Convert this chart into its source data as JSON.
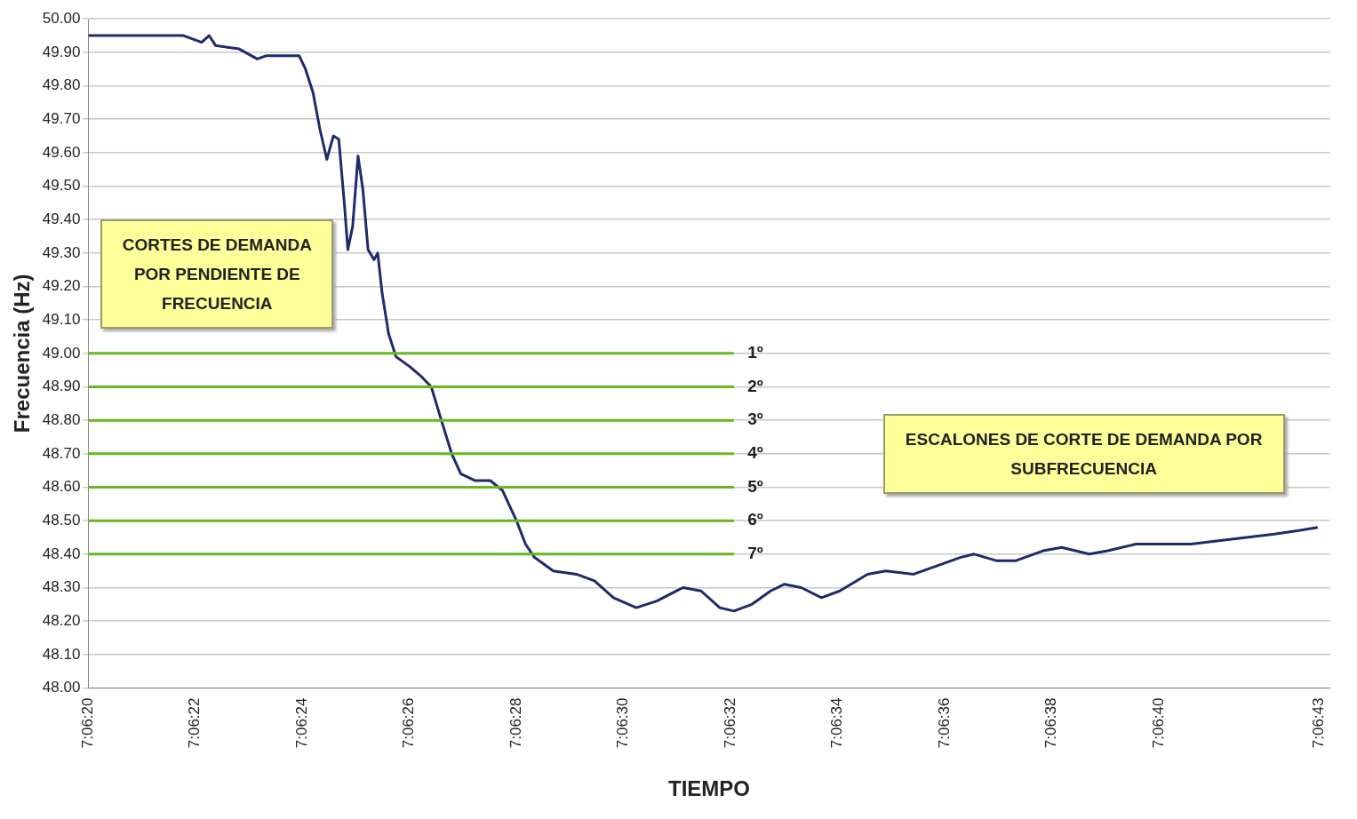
{
  "chart_data": {
    "type": "line",
    "xlabel": "TIEMPO",
    "ylabel": "Frecuencia (Hz)",
    "annotations": [
      "CORTES DE DEMANDA POR PENDIENTE DE FRECUENCIA",
      "ESCALONES DE CORTE DE DEMANDA POR SUBFRECUENCIA",
      "1º",
      "2º",
      "3º",
      "4º",
      "5º",
      "6º",
      "7º"
    ],
    "x": [
      7.105556,
      7.10605,
      7.106144,
      7.106183,
      7.106217,
      7.106339,
      7.106433,
      7.106481,
      7.10665,
      7.106683,
      7.106722,
      7.106758,
      7.106794,
      7.106828,
      7.106856,
      7.106886,
      7.106903,
      7.106928,
      7.106956,
      7.106981,
      7.107008,
      7.107039,
      7.107058,
      7.107081,
      7.107114,
      7.107153,
      7.107225,
      7.107286,
      7.107336,
      7.107383,
      7.107442,
      7.107489,
      7.107561,
      7.107642,
      7.107706,
      7.107778,
      7.107825,
      7.107872,
      7.107969,
      7.108089,
      7.108183,
      7.108281,
      7.1084,
      7.108506,
      7.108642,
      7.108736,
      7.108833,
      7.108906,
      7.108953,
      7.109,
      7.109097,
      7.109169,
      7.109256,
      7.109361,
      7.109456,
      7.1096,
      7.109694,
      7.109839,
      7.109936,
      7.110081,
      7.110153,
      7.110272,
      7.110367,
      7.110511,
      7.110608,
      7.11075,
      7.110847,
      7.110992,
      7.111136,
      7.111278,
      7.111422,
      7.111567,
      7.111711,
      7.111831,
      7.111936
    ],
    "series": [
      {
        "color": "#1f2a6b",
        "values": [
          49.95,
          49.95,
          49.93,
          49.95,
          49.92,
          49.91,
          49.88,
          49.89,
          49.89,
          49.85,
          49.78,
          49.67,
          49.58,
          49.65,
          49.64,
          49.44,
          49.31,
          49.38,
          49.59,
          49.49,
          49.31,
          49.28,
          49.3,
          49.18,
          49.06,
          48.99,
          48.96,
          48.93,
          48.9,
          48.81,
          48.7,
          48.64,
          48.62,
          48.62,
          48.59,
          48.5,
          48.43,
          48.39,
          48.35,
          48.34,
          48.32,
          48.27,
          48.24,
          48.26,
          48.3,
          48.29,
          48.24,
          48.23,
          48.24,
          48.25,
          48.29,
          48.31,
          48.3,
          48.27,
          48.29,
          48.34,
          48.35,
          48.34,
          48.36,
          48.39,
          48.4,
          48.38,
          48.38,
          48.41,
          48.42,
          48.4,
          48.41,
          48.43,
          48.43,
          48.43,
          48.44,
          48.45,
          48.46,
          48.47,
          48.48
        ]
      }
    ],
    "xlim": [
      7.105556,
      7.112
    ],
    "xticks": [
      {
        "value": 7.105556,
        "label": "7:06:20"
      },
      {
        "value": 7.106111,
        "label": "7:06:22"
      },
      {
        "value": 7.106667,
        "label": "7:06:24"
      },
      {
        "value": 7.107222,
        "label": "7:06:26"
      },
      {
        "value": 7.107778,
        "label": "7:06:28"
      },
      {
        "value": 7.108333,
        "label": "7:06:30"
      },
      {
        "value": 7.108889,
        "label": "7:06:32"
      },
      {
        "value": 7.109444,
        "label": "7:06:34"
      },
      {
        "value": 7.11,
        "label": "7:06:36"
      },
      {
        "value": 7.110556,
        "label": "7:06:38"
      },
      {
        "value": 7.111111,
        "label": "7:06:40"
      },
      {
        "value": 7.111944,
        "label": "7:06:43"
      }
    ],
    "ylim": [
      48,
      50
    ],
    "yticks": [
      {
        "value": 48,
        "label": "48.00"
      },
      {
        "value": 48.1,
        "label": "48.10"
      },
      {
        "value": 48.2,
        "label": "48.20"
      },
      {
        "value": 48.3,
        "label": "48.30"
      },
      {
        "value": 48.4,
        "label": "48.40"
      },
      {
        "value": 48.5,
        "label": "48.50"
      },
      {
        "value": 48.6,
        "label": "48.60"
      },
      {
        "value": 48.7,
        "label": "48.70"
      },
      {
        "value": 48.8,
        "label": "48.80"
      },
      {
        "value": 48.9,
        "label": "48.90"
      },
      {
        "value": 49,
        "label": "49.00"
      },
      {
        "value": 49.1,
        "label": "49.10"
      },
      {
        "value": 49.2,
        "label": "49.20"
      },
      {
        "value": 49.3,
        "label": "49.30"
      },
      {
        "value": 49.4,
        "label": "49.40"
      },
      {
        "value": 49.5,
        "label": "49.50"
      },
      {
        "value": 49.6,
        "label": "49.60"
      },
      {
        "value": 49.7,
        "label": "49.70"
      },
      {
        "value": 49.8,
        "label": "49.80"
      },
      {
        "value": 49.9,
        "label": "49.90"
      },
      {
        "value": 50,
        "label": "50.00"
      }
    ],
    "ref_lines": [
      {
        "axis": "y",
        "value": 49,
        "color": "#66b822"
      },
      {
        "axis": "y",
        "value": 48.9,
        "color": "#66b822"
      },
      {
        "axis": "y",
        "value": 48.8,
        "color": "#66b822"
      },
      {
        "axis": "y",
        "value": 48.7,
        "color": "#66b822"
      },
      {
        "axis": "y",
        "value": 48.6,
        "color": "#66b822"
      },
      {
        "axis": "y",
        "value": 48.5,
        "color": "#66b822"
      },
      {
        "axis": "y",
        "value": 48.4,
        "color": "#66b822"
      }
    ],
    "grid": "y",
    "legend": false,
    "marker": "none",
    "line_style": "solid"
  }
}
